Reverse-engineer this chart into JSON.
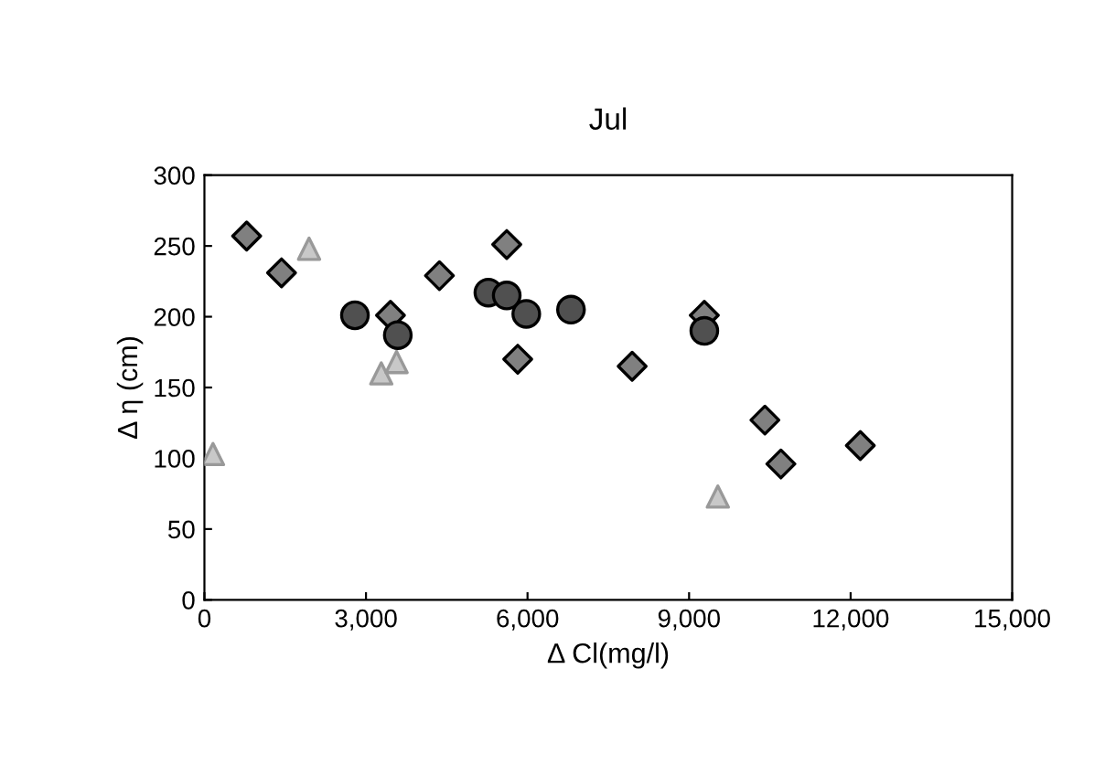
{
  "chart_data": {
    "type": "scatter",
    "title": "Jul",
    "xlabel": "Δ Cl(mg/l)",
    "ylabel": "Δ η (cm)",
    "xlim": [
      0,
      15000
    ],
    "ylim": [
      0,
      300
    ],
    "xticks": [
      {
        "value": 0,
        "label": "0"
      },
      {
        "value": 3000,
        "label": "3,000"
      },
      {
        "value": 6000,
        "label": "6,000"
      },
      {
        "value": 9000,
        "label": "9,000"
      },
      {
        "value": 12000,
        "label": "12,000"
      },
      {
        "value": 15000,
        "label": "15,000"
      }
    ],
    "yticks": [
      0,
      50,
      100,
      150,
      200,
      250,
      300
    ],
    "grid": false,
    "legend": false,
    "series": [
      {
        "color": "#808080",
        "marker": "diamond",
        "x": [
          784,
          1432,
          4364,
          5614,
          3455,
          5818,
          7943,
          9283,
          10408,
          12180,
          10705
        ],
        "values": [
          257,
          231,
          229,
          251,
          201,
          170,
          165,
          201,
          127,
          109,
          96
        ]
      },
      {
        "color": "#c8c8c8",
        "marker": "triangle",
        "x": [
          1943,
          3284,
          3568,
          159,
          9534
        ],
        "values": [
          248,
          160,
          168,
          103,
          73
        ]
      },
      {
        "color": "#505050",
        "marker": "circle",
        "x": [
          2795,
          3591,
          5273,
          5614,
          5977,
          6807,
          9283
        ],
        "values": [
          201,
          187,
          217,
          215,
          202,
          205,
          190
        ]
      }
    ]
  }
}
